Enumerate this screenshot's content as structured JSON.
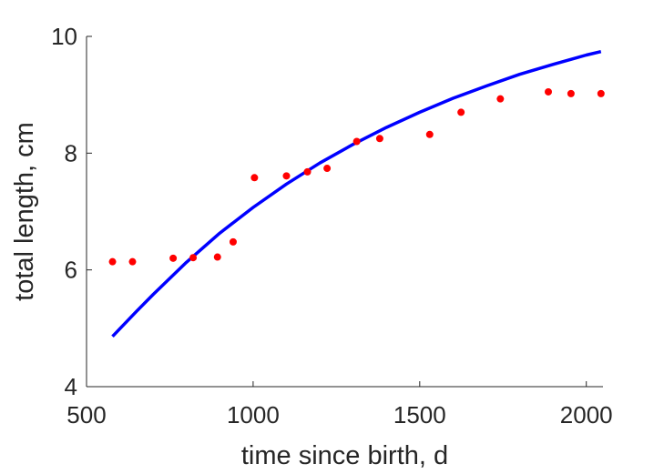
{
  "chart_data": {
    "type": "scatter",
    "title": "",
    "xlabel": "time since birth, d",
    "ylabel": "total length, cm",
    "xlim": [
      500,
      2050
    ],
    "ylim": [
      4,
      10
    ],
    "xticks": [
      500,
      1000,
      1500,
      2000
    ],
    "yticks": [
      4,
      6,
      8,
      10
    ],
    "xtick_labels": [
      "500",
      "1000",
      "1500",
      "2000"
    ],
    "ytick_labels": [
      "4",
      "6",
      "8",
      "10"
    ],
    "grid": false,
    "legend": "none",
    "series": [
      {
        "kind": "points",
        "color": "#ff0000",
        "x": [
          578,
          638,
          760,
          820,
          893,
          940,
          1004,
          1100,
          1163,
          1222,
          1311,
          1380,
          1530,
          1624,
          1742,
          1886,
          1954,
          2044
        ],
        "y": [
          6.14,
          6.14,
          6.2,
          6.21,
          6.22,
          6.48,
          7.58,
          7.61,
          7.68,
          7.74,
          8.2,
          8.25,
          8.32,
          8.7,
          8.93,
          9.05,
          9.02,
          9.02
        ]
      },
      {
        "kind": "curve",
        "color": "#0000ff",
        "x": [
          578,
          650,
          700,
          800,
          900,
          1000,
          1100,
          1200,
          1300,
          1400,
          1500,
          1600,
          1700,
          1800,
          1900,
          2000,
          2044
        ],
        "y": [
          4.86,
          5.29,
          5.58,
          6.13,
          6.63,
          7.07,
          7.47,
          7.83,
          8.15,
          8.44,
          8.7,
          8.94,
          9.15,
          9.35,
          9.52,
          9.68,
          9.74
        ]
      }
    ]
  }
}
